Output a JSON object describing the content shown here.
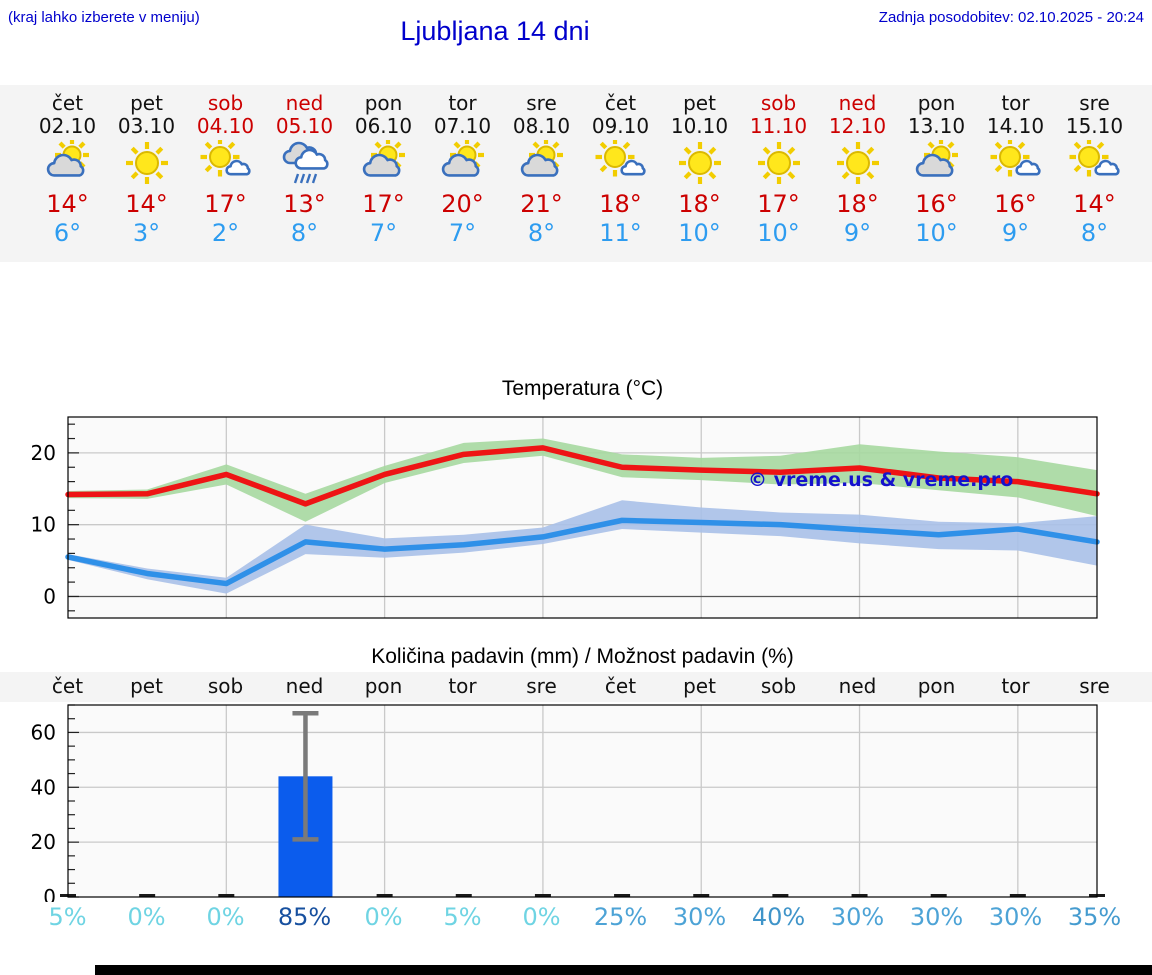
{
  "header": {
    "note": "(kraj lahko izberete v meniju)",
    "title": "Ljubljana 14 dni",
    "updated": "Zadnja posodobitev: 02.10.2025 - 20:24"
  },
  "forecast": {
    "days": [
      {
        "day": "čet",
        "date": "02.10",
        "weekend": false,
        "icon": "sun-cloud",
        "high": "14°",
        "low": "6°"
      },
      {
        "day": "pet",
        "date": "03.10",
        "weekend": false,
        "icon": "sun",
        "high": "14°",
        "low": "3°"
      },
      {
        "day": "sob",
        "date": "04.10",
        "weekend": true,
        "icon": "sun-small-cloud",
        "high": "17°",
        "low": "2°"
      },
      {
        "day": "ned",
        "date": "05.10",
        "weekend": true,
        "icon": "rain",
        "high": "13°",
        "low": "8°"
      },
      {
        "day": "pon",
        "date": "06.10",
        "weekend": false,
        "icon": "sun-cloud",
        "high": "17°",
        "low": "7°"
      },
      {
        "day": "tor",
        "date": "07.10",
        "weekend": false,
        "icon": "sun-cloud",
        "high": "20°",
        "low": "7°"
      },
      {
        "day": "sre",
        "date": "08.10",
        "weekend": false,
        "icon": "sun-cloud",
        "high": "21°",
        "low": "8°"
      },
      {
        "day": "čet",
        "date": "09.10",
        "weekend": false,
        "icon": "sun-small-cloud",
        "high": "18°",
        "low": "11°"
      },
      {
        "day": "pet",
        "date": "10.10",
        "weekend": false,
        "icon": "sun",
        "high": "18°",
        "low": "10°"
      },
      {
        "day": "sob",
        "date": "11.10",
        "weekend": true,
        "icon": "sun",
        "high": "17°",
        "low": "10°"
      },
      {
        "day": "ned",
        "date": "12.10",
        "weekend": true,
        "icon": "sun",
        "high": "18°",
        "low": "9°"
      },
      {
        "day": "pon",
        "date": "13.10",
        "weekend": false,
        "icon": "sun-cloud",
        "high": "16°",
        "low": "10°"
      },
      {
        "day": "tor",
        "date": "14.10",
        "weekend": false,
        "icon": "sun-small-cloud",
        "high": "16°",
        "low": "9°"
      },
      {
        "day": "sre",
        "date": "15.10",
        "weekend": false,
        "icon": "sun-small-cloud",
        "high": "14°",
        "low": "8°"
      }
    ],
    "weekend_color": "#cc0000",
    "high_color": "#cc0000",
    "low_color": "#2d9cf0"
  },
  "chart_data": [
    {
      "type": "line",
      "title": "Temperatura (°C)",
      "x_days": [
        "čet",
        "pet",
        "sob",
        "ned",
        "pon",
        "tor",
        "sre",
        "čet",
        "pet",
        "sob",
        "ned",
        "pon",
        "tor",
        "sre"
      ],
      "series": [
        {
          "name": "max-temp",
          "color": "#ee1414",
          "values": [
            14.2,
            14.3,
            17.0,
            12.9,
            17.0,
            19.8,
            20.7,
            18.0,
            17.6,
            17.3,
            17.9,
            16.5,
            16.0,
            14.3
          ],
          "band_upper": [
            14.7,
            14.9,
            18.4,
            14.3,
            18.2,
            21.4,
            22.0,
            19.8,
            19.3,
            19.6,
            21.2,
            20.2,
            19.4,
            17.6
          ],
          "band_lower": [
            13.7,
            13.6,
            15.6,
            10.4,
            15.8,
            18.6,
            19.6,
            16.6,
            16.2,
            15.6,
            15.8,
            14.8,
            13.8,
            11.2
          ],
          "band_color": "#a6d8a0"
        },
        {
          "name": "min-temp",
          "color": "#2f90e8",
          "values": [
            5.5,
            3.2,
            1.8,
            7.6,
            6.6,
            7.2,
            8.3,
            10.6,
            10.3,
            10.0,
            9.3,
            8.6,
            9.4,
            7.6
          ],
          "band_upper": [
            5.9,
            3.9,
            2.6,
            10.0,
            8.1,
            8.6,
            9.6,
            13.4,
            12.4,
            11.7,
            11.4,
            10.4,
            10.2,
            11.2
          ],
          "band_lower": [
            5.1,
            2.4,
            0.4,
            5.9,
            5.4,
            6.1,
            7.3,
            9.4,
            8.9,
            8.4,
            7.4,
            6.6,
            6.4,
            4.3
          ],
          "band_color": "#a9c0e8"
        }
      ],
      "ylim": [
        -3,
        25
      ],
      "yticks": [
        0,
        10,
        20
      ],
      "minor_tick_step": 2,
      "vgrid_day_indices": [
        2,
        4,
        6,
        8,
        10,
        12
      ],
      "grid": true,
      "legend": "none",
      "watermark": "© vreme.us & vreme.pro"
    },
    {
      "type": "bar",
      "title": "Količina padavin (mm) / Možnost padavin (%)",
      "day_labels": [
        "čet",
        "pet",
        "sob",
        "ned",
        "pon",
        "tor",
        "sre",
        "čet",
        "pet",
        "sob",
        "ned",
        "pon",
        "tor",
        "sre"
      ],
      "values": [
        0,
        0,
        0,
        44,
        0,
        0,
        0,
        0,
        0,
        0,
        0,
        0,
        0,
        0
      ],
      "error_bars": [
        {
          "index": 3,
          "low": 21,
          "high": 67
        }
      ],
      "ylim": [
        0,
        70
      ],
      "yticks": [
        0,
        20,
        40,
        60
      ],
      "minor_tick_step": 5,
      "vgrid_day_indices": [
        2,
        4,
        6,
        8,
        10,
        12
      ],
      "grid": true,
      "bar_color": "#0b5ced",
      "whisker_color": "#7a7a7a",
      "percent_labels": [
        {
          "text": "5%",
          "color": "#6fd4e3"
        },
        {
          "text": "0%",
          "color": "#6fd4e3"
        },
        {
          "text": "0%",
          "color": "#6fd4e3"
        },
        {
          "text": "85%",
          "color": "#17509f"
        },
        {
          "text": "0%",
          "color": "#6fd4e3"
        },
        {
          "text": "5%",
          "color": "#6fd4e3"
        },
        {
          "text": "0%",
          "color": "#6fd4e3"
        },
        {
          "text": "25%",
          "color": "#4da3d6"
        },
        {
          "text": "30%",
          "color": "#4da3d6"
        },
        {
          "text": "40%",
          "color": "#3f94c9"
        },
        {
          "text": "30%",
          "color": "#4da3d6"
        },
        {
          "text": "30%",
          "color": "#4da3d6"
        },
        {
          "text": "30%",
          "color": "#4da3d6"
        },
        {
          "text": "35%",
          "color": "#459bcf"
        }
      ]
    }
  ]
}
